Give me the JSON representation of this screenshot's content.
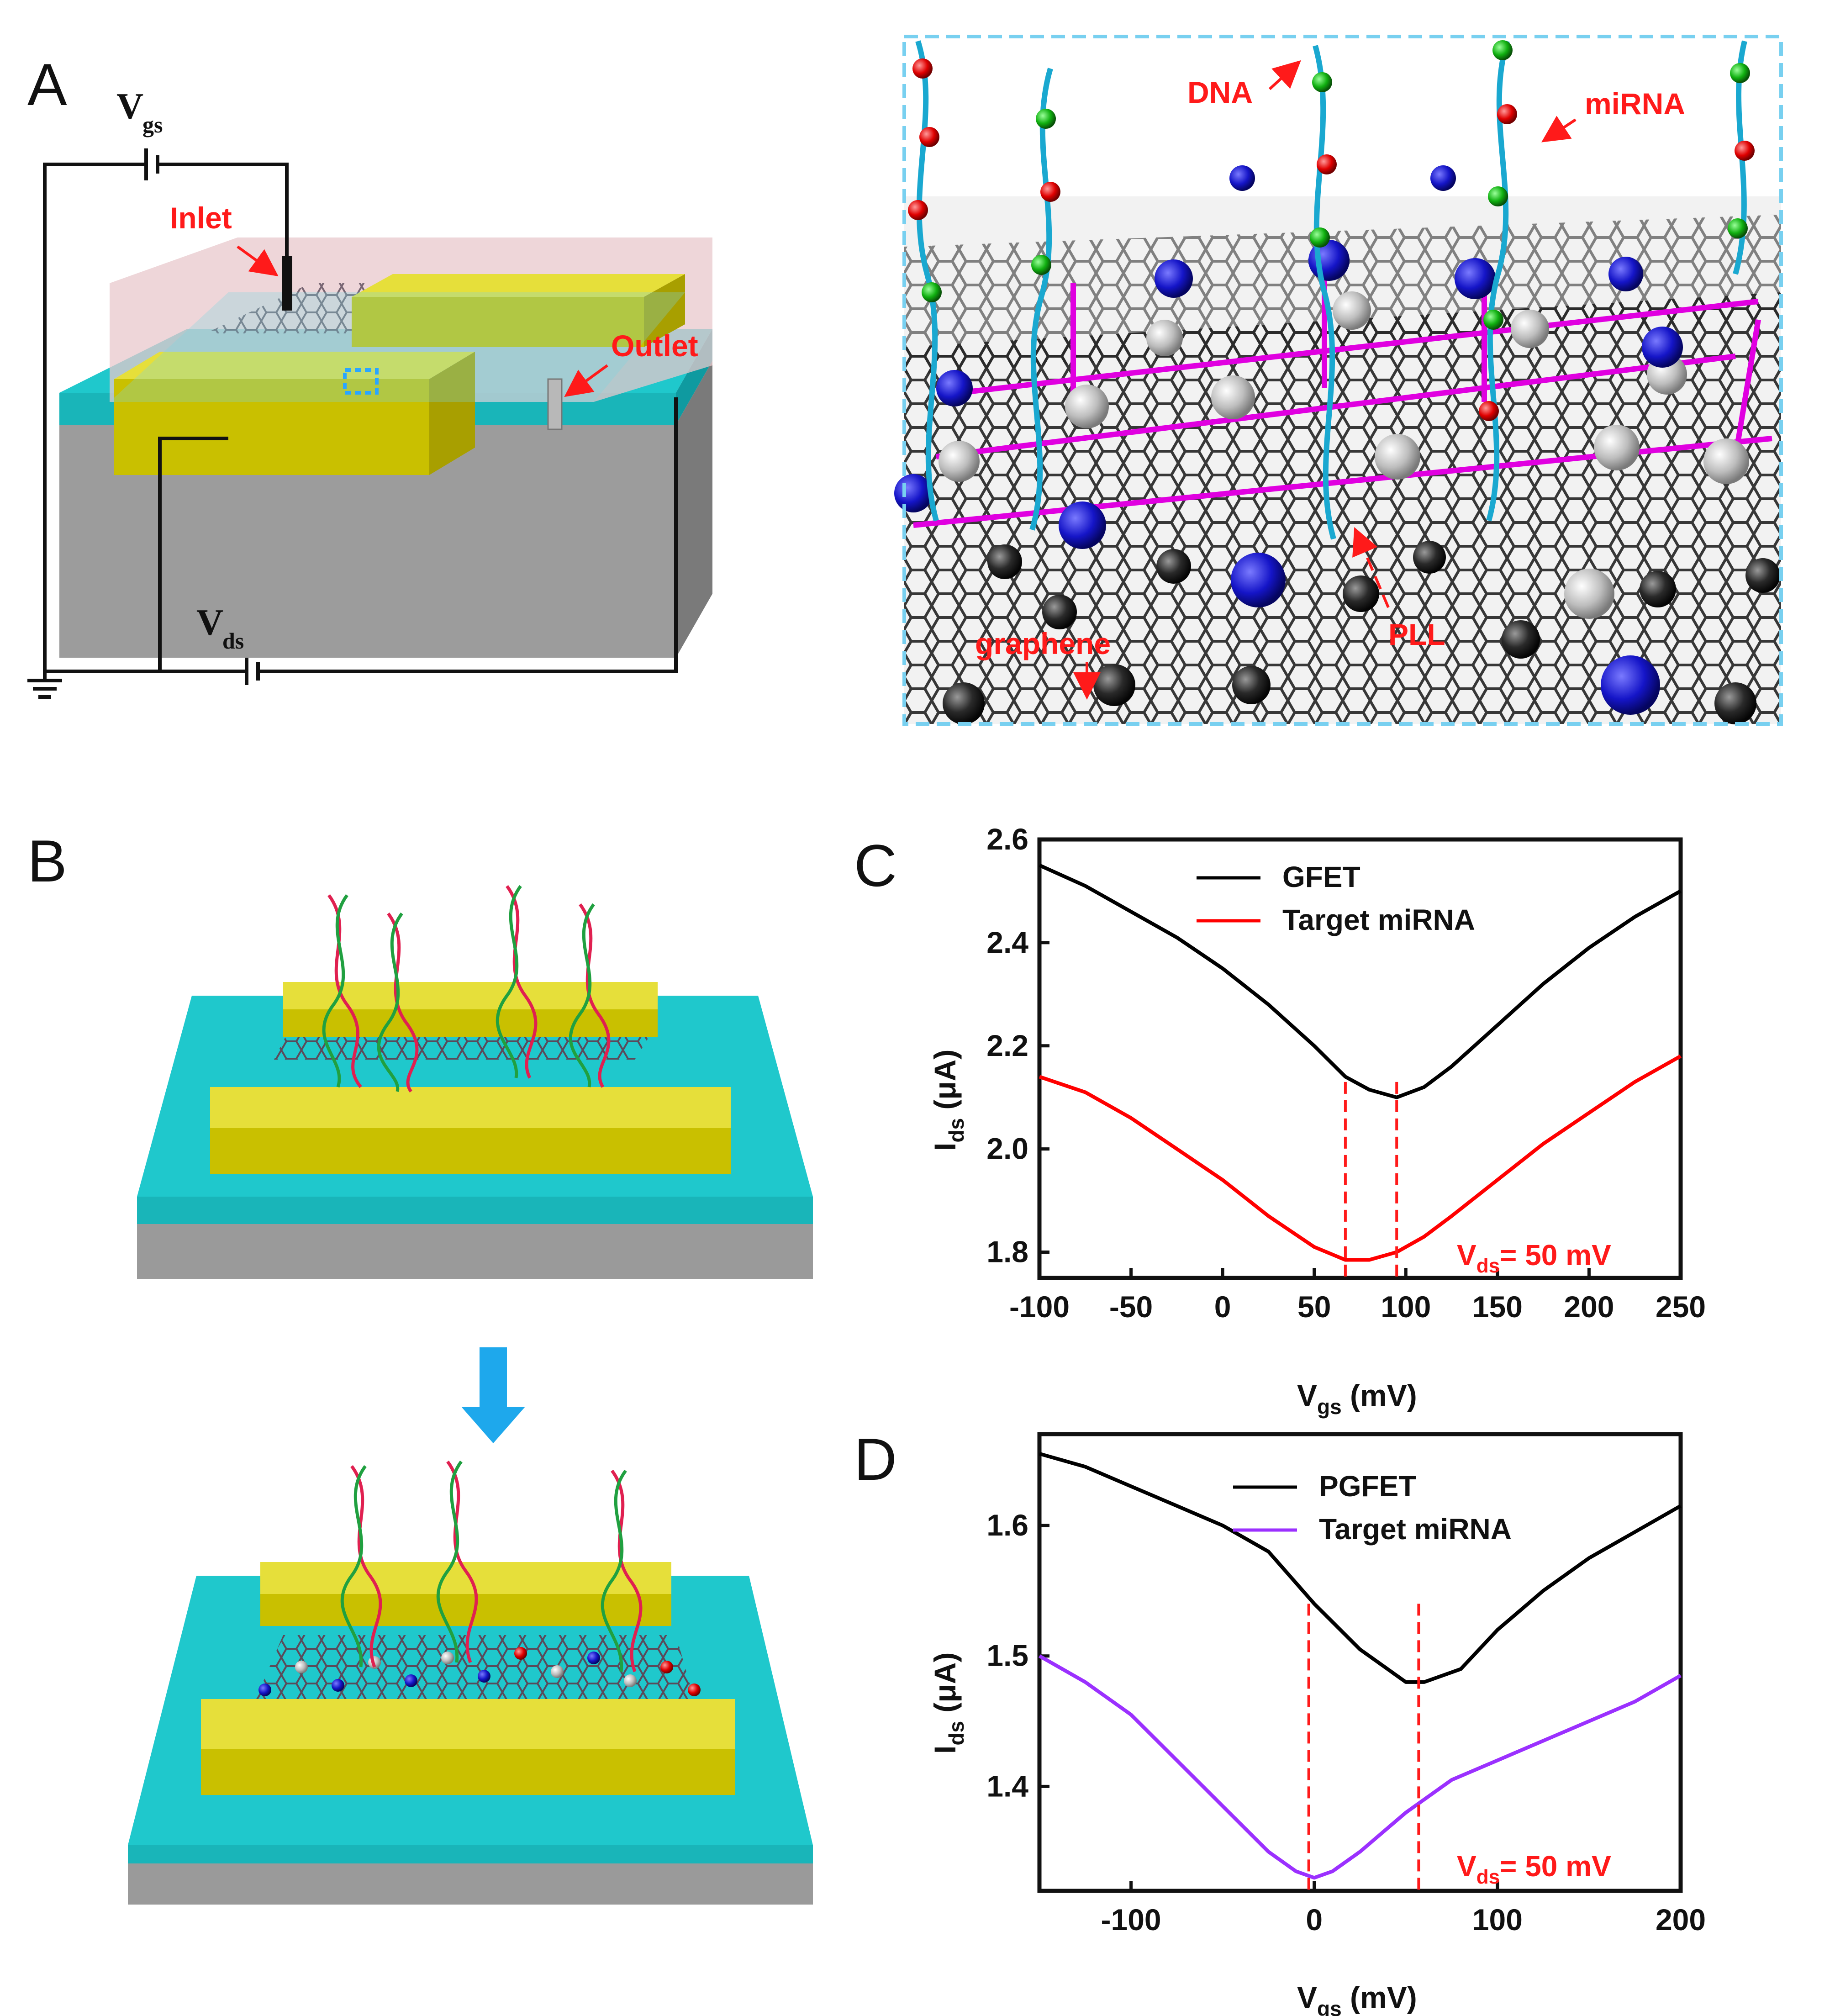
{
  "panels": {
    "a": "A",
    "b": "B",
    "c": "C",
    "d": "D"
  },
  "panel_a": {
    "vgs_main": "V",
    "vgs_sub": "gs",
    "vds_main": "V",
    "vds_sub": "ds",
    "inlet": "Inlet",
    "outlet": "Outlet"
  },
  "zoom": {
    "dna": "DNA",
    "mirna": "miRNA",
    "pll": "PLL",
    "graphene": "graphene"
  },
  "colors": {
    "substrate_top": "#1fc8cc",
    "substrate_base": "#9a9a9a",
    "electrode": "#c9c000",
    "label_red": "#ff1a1a",
    "arrow_blue": "#1ea8ec",
    "gfet_black": "#000000",
    "target_red": "#ff0000",
    "target_purple": "#9b30ff",
    "zoom_border": "#78d0f0"
  },
  "chart_data": [
    {
      "type": "line",
      "panel": "C",
      "xlabel_main": "V",
      "xlabel_sub": "gs",
      "xlabel_unit": " (mV)",
      "ylabel_main": "I",
      "ylabel_sub": "ds",
      "ylabel_unit": " (μA)",
      "xlim": [
        -100,
        250
      ],
      "ylim": [
        1.75,
        2.6
      ],
      "xticks": [
        -100,
        -50,
        0,
        50,
        100,
        150,
        200,
        250
      ],
      "yticks": [
        1.8,
        2.0,
        2.2,
        2.4,
        2.6
      ],
      "annotation_main": "V",
      "annotation_sub": "ds",
      "annotation_value": "= 50 mV",
      "dirac_lines": [
        67,
        95
      ],
      "series": [
        {
          "name": "GFET",
          "color": "#000000",
          "x": [
            -100,
            -75,
            -50,
            -25,
            0,
            25,
            50,
            67,
            80,
            95,
            110,
            125,
            150,
            175,
            200,
            225,
            250
          ],
          "y": [
            2.55,
            2.51,
            2.46,
            2.41,
            2.35,
            2.28,
            2.2,
            2.14,
            2.115,
            2.1,
            2.12,
            2.16,
            2.24,
            2.32,
            2.39,
            2.45,
            2.5
          ]
        },
        {
          "name": "Target miRNA",
          "color": "#ff0000",
          "x": [
            -100,
            -75,
            -50,
            -25,
            0,
            25,
            50,
            67,
            80,
            95,
            110,
            125,
            150,
            175,
            200,
            225,
            250
          ],
          "y": [
            2.14,
            2.11,
            2.06,
            2.0,
            1.94,
            1.87,
            1.81,
            1.785,
            1.785,
            1.8,
            1.83,
            1.87,
            1.94,
            2.01,
            2.07,
            2.13,
            2.18
          ]
        }
      ]
    },
    {
      "type": "line",
      "panel": "D",
      "xlabel_main": "V",
      "xlabel_sub": "gs",
      "xlabel_unit": " (mV)",
      "ylabel_main": "I",
      "ylabel_sub": "ds",
      "ylabel_unit": " (μA)",
      "xlim": [
        -150,
        200
      ],
      "ylim": [
        1.32,
        1.67
      ],
      "xticks": [
        -100,
        0,
        100,
        200
      ],
      "yticks": [
        1.4,
        1.5,
        1.6
      ],
      "annotation_main": "V",
      "annotation_sub": "ds",
      "annotation_value": "= 50 mV",
      "dirac_lines": [
        -3,
        57
      ],
      "series": [
        {
          "name": "PGFET",
          "color": "#000000",
          "x": [
            -150,
            -125,
            -100,
            -75,
            -50,
            -25,
            0,
            25,
            40,
            50,
            60,
            80,
            100,
            125,
            150,
            175,
            200
          ],
          "y": [
            1.655,
            1.645,
            1.63,
            1.615,
            1.6,
            1.58,
            1.54,
            1.505,
            1.49,
            1.48,
            1.48,
            1.49,
            1.52,
            1.55,
            1.575,
            1.595,
            1.615
          ]
        },
        {
          "name": "Target miRNA",
          "color": "#9b30ff",
          "x": [
            -150,
            -125,
            -100,
            -75,
            -50,
            -25,
            -10,
            0,
            10,
            25,
            50,
            75,
            100,
            125,
            150,
            175,
            200
          ],
          "y": [
            1.5,
            1.48,
            1.455,
            1.42,
            1.385,
            1.35,
            1.335,
            1.33,
            1.335,
            1.35,
            1.38,
            1.405,
            1.42,
            1.435,
            1.45,
            1.465,
            1.485
          ]
        }
      ]
    }
  ]
}
